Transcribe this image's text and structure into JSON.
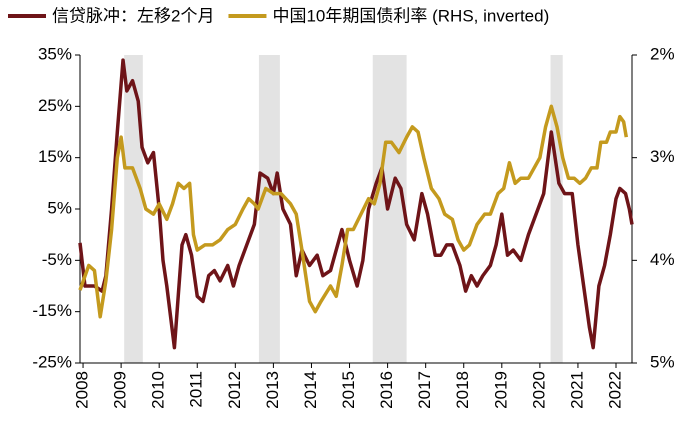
{
  "chart_data": {
    "type": "line",
    "xlim": [
      2007.92,
      2022.42
    ],
    "xticks": [
      2008,
      2009,
      2010,
      2011,
      2012,
      2013,
      2014,
      2015,
      2016,
      2017,
      2018,
      2019,
      2020,
      2021,
      2022
    ],
    "ylim": [
      -25,
      35
    ],
    "yticks": [
      {
        "value": 35,
        "label": "35%"
      },
      {
        "value": 25,
        "label": "25%"
      },
      {
        "value": 15,
        "label": "15%"
      },
      {
        "value": 5,
        "label": "5%"
      },
      {
        "value": -5,
        "label": "-5%"
      },
      {
        "value": -15,
        "label": "-15%"
      },
      {
        "value": -25,
        "label": "-25%"
      }
    ],
    "y2lim": [
      2,
      5
    ],
    "y2_inverted": true,
    "y2ticks": [
      {
        "value": 2,
        "label": "2%"
      },
      {
        "value": 3,
        "label": "3%"
      },
      {
        "value": 4,
        "label": "4%"
      },
      {
        "value": 5,
        "label": "5%"
      }
    ],
    "shaded": [
      [
        2009.08,
        2009.57
      ],
      [
        2012.62,
        2013.17
      ],
      [
        2015.61,
        2016.5
      ],
      [
        2020.28,
        2020.6
      ]
    ],
    "shade_color": "#e3e3e3",
    "series": [
      {
        "name": "信贷脉冲：左移2个月",
        "color": "#6e1418",
        "x": [
          2007.92,
          2008.05,
          2008.3,
          2008.5,
          2008.6,
          2008.75,
          2008.9,
          2009.05,
          2009.15,
          2009.3,
          2009.45,
          2009.55,
          2009.7,
          2009.85,
          2010.0,
          2010.1,
          2010.2,
          2010.4,
          2010.5,
          2010.6,
          2010.7,
          2010.85,
          2011.0,
          2011.15,
          2011.3,
          2011.45,
          2011.6,
          2011.8,
          2011.95,
          2012.1,
          2012.3,
          2012.5,
          2012.65,
          2012.85,
          2013.0,
          2013.1,
          2013.25,
          2013.45,
          2013.6,
          2013.75,
          2013.95,
          2014.15,
          2014.3,
          2014.5,
          2014.65,
          2014.8,
          2015.0,
          2015.2,
          2015.35,
          2015.5,
          2015.7,
          2015.85,
          2016.0,
          2016.2,
          2016.35,
          2016.5,
          2016.7,
          2016.9,
          2017.05,
          2017.25,
          2017.4,
          2017.55,
          2017.7,
          2017.9,
          2018.05,
          2018.2,
          2018.35,
          2018.5,
          2018.7,
          2018.85,
          2019.0,
          2019.15,
          2019.3,
          2019.5,
          2019.7,
          2019.9,
          2020.1,
          2020.3,
          2020.5,
          2020.65,
          2020.85,
          2021.0,
          2021.15,
          2021.3,
          2021.4,
          2021.55,
          2021.7,
          2021.85,
          2022.0,
          2022.1,
          2022.25,
          2022.35,
          2022.42
        ],
        "values": [
          -1.6,
          -10,
          -10,
          -11,
          -8,
          5,
          20,
          34,
          28,
          30,
          26,
          17,
          14,
          16,
          5,
          -5,
          -10,
          -22,
          -12,
          -2,
          0,
          -4,
          -12,
          -13,
          -8,
          -7,
          -9,
          -6,
          -10,
          -6,
          -2,
          2,
          12,
          11,
          8,
          12,
          5,
          2,
          -8,
          -3,
          -6,
          -4,
          -8,
          -7,
          -3,
          1,
          -5,
          -10,
          -5,
          5,
          10,
          13,
          5,
          11,
          9,
          2,
          -1,
          8,
          4,
          -4,
          -4,
          -2,
          -2,
          -6,
          -11,
          -8,
          -10,
          -8,
          -6,
          -2,
          4,
          -4,
          -3,
          -5,
          0,
          4,
          8,
          20,
          10,
          8,
          8,
          -2,
          -10,
          -18,
          -22,
          -10,
          -6,
          0,
          7,
          9,
          8,
          5,
          2
        ]
      },
      {
        "name": "中国10年期国债利率 (RHS, inverted)",
        "color": "#c49a1e",
        "axis": "y2",
        "x": [
          2007.92,
          2008.15,
          2008.3,
          2008.45,
          2008.6,
          2008.75,
          2008.9,
          2009.0,
          2009.1,
          2009.3,
          2009.5,
          2009.65,
          2009.85,
          2010.0,
          2010.2,
          2010.35,
          2010.5,
          2010.65,
          2010.8,
          2010.9,
          2011.0,
          2011.2,
          2011.4,
          2011.6,
          2011.8,
          2012.0,
          2012.2,
          2012.35,
          2012.5,
          2012.6,
          2012.8,
          2013.0,
          2013.2,
          2013.45,
          2013.6,
          2013.75,
          2013.95,
          2014.1,
          2014.25,
          2014.5,
          2014.65,
          2014.8,
          2014.95,
          2015.1,
          2015.3,
          2015.5,
          2015.65,
          2015.8,
          2015.95,
          2016.1,
          2016.3,
          2016.5,
          2016.65,
          2016.8,
          2016.95,
          2017.15,
          2017.35,
          2017.5,
          2017.7,
          2017.85,
          2018.0,
          2018.15,
          2018.35,
          2018.55,
          2018.7,
          2018.9,
          2019.05,
          2019.2,
          2019.35,
          2019.5,
          2019.7,
          2019.85,
          2020.0,
          2020.15,
          2020.3,
          2020.45,
          2020.6,
          2020.75,
          2020.9,
          2021.05,
          2021.2,
          2021.35,
          2021.5,
          2021.6,
          2021.75,
          2021.85,
          2022.0,
          2022.1,
          2022.2,
          2022.27
        ],
        "values": [
          4.29,
          4.05,
          4.1,
          4.55,
          4.2,
          3.7,
          3.0,
          2.8,
          3.1,
          3.1,
          3.3,
          3.5,
          3.55,
          3.45,
          3.6,
          3.45,
          3.25,
          3.3,
          3.25,
          3.75,
          3.9,
          3.85,
          3.85,
          3.8,
          3.7,
          3.65,
          3.5,
          3.4,
          3.45,
          3.5,
          3.3,
          3.35,
          3.35,
          3.45,
          3.55,
          3.9,
          4.4,
          4.5,
          4.4,
          4.25,
          4.35,
          4.05,
          3.7,
          3.7,
          3.55,
          3.4,
          3.45,
          3.25,
          2.85,
          2.85,
          2.95,
          2.8,
          2.7,
          2.75,
          3.0,
          3.3,
          3.4,
          3.55,
          3.6,
          3.8,
          3.9,
          3.85,
          3.65,
          3.55,
          3.55,
          3.35,
          3.3,
          3.05,
          3.25,
          3.2,
          3.2,
          3.1,
          3.0,
          2.7,
          2.5,
          2.7,
          3.0,
          3.2,
          3.2,
          3.25,
          3.2,
          3.1,
          3.1,
          2.85,
          2.85,
          2.75,
          2.75,
          2.6,
          2.65,
          2.8
        ]
      }
    ]
  }
}
